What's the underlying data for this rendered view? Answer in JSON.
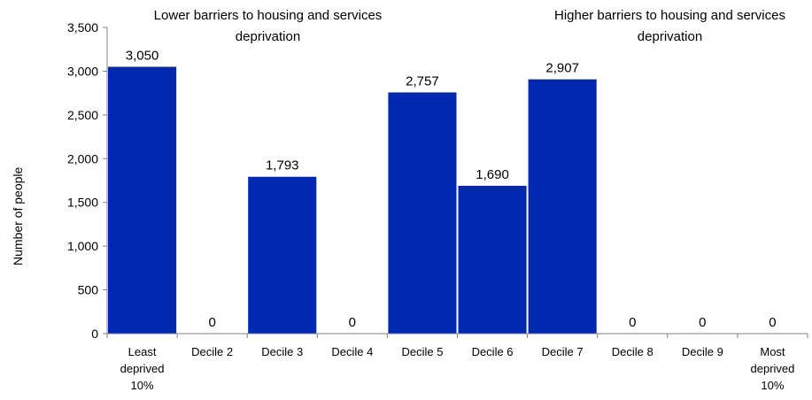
{
  "chart_data": {
    "type": "bar",
    "title": "",
    "xlabel": "",
    "ylabel": "Number of people",
    "ylim": [
      0,
      3500
    ],
    "yticks": [
      0,
      500,
      1000,
      1500,
      2000,
      2500,
      3000,
      3500
    ],
    "ytick_labels": [
      "0",
      "500",
      "1,000",
      "1,500",
      "2,000",
      "2,500",
      "3,000",
      "3,500"
    ],
    "categories": [
      "Least deprived 10%",
      "Decile 2",
      "Decile 3",
      "Decile 4",
      "Decile 5",
      "Decile 6",
      "Decile 7",
      "Decile 8",
      "Decile 9",
      "Most deprived 10%"
    ],
    "category_lines": [
      [
        "Least",
        "deprived",
        "10%"
      ],
      [
        "Decile 2"
      ],
      [
        "Decile 3"
      ],
      [
        "Decile 4"
      ],
      [
        "Decile 5"
      ],
      [
        "Decile 6"
      ],
      [
        "Decile 7"
      ],
      [
        "Decile 8"
      ],
      [
        "Decile 9"
      ],
      [
        "Most",
        "deprived",
        "10%"
      ]
    ],
    "values": [
      3050,
      0,
      1793,
      0,
      2757,
      1690,
      2907,
      0,
      0,
      0
    ],
    "value_labels": [
      "3,050",
      "0",
      "1,793",
      "0",
      "2,757",
      "1,690",
      "2,907",
      "0",
      "0",
      "0"
    ],
    "bar_color": "#0028B0",
    "grid": false,
    "annotations": {
      "left": [
        "Lower barriers to housing and services",
        "deprivation"
      ],
      "right": [
        "Higher barriers to housing and services",
        "deprivation"
      ]
    }
  }
}
